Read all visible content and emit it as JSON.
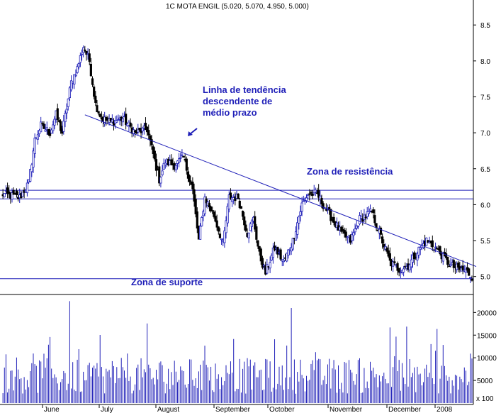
{
  "chart_data": {
    "type": "candlestick",
    "title": "1C MOTA ENGIL (5.020, 5.070, 4.950, 5.000)",
    "price_axis": {
      "min": 4.75,
      "max": 8.65,
      "ticks": [
        "8.5",
        "8.0",
        "7.5",
        "7.0",
        "6.5",
        "6.0",
        "5.5",
        "5.0"
      ]
    },
    "volume_axis": {
      "max": 23500,
      "ticks": [
        "20000",
        "15000",
        "10000",
        "5000"
      ],
      "multiplier_label": "x 100"
    },
    "months": [
      "June",
      "July",
      "August",
      "September",
      "October",
      "November",
      "December",
      "2008"
    ],
    "annotations": {
      "trendline_label": [
        "Linha de tendência",
        "descendente de",
        "médio prazo"
      ],
      "resistance_label": "Zona de resistência",
      "support_label": "Zona de suporte"
    },
    "resistance_zone": [
      6.08,
      6.2
    ],
    "support_level": 4.97,
    "trendline": {
      "from_index": 55,
      "from_price": 7.25,
      "to_index": 310,
      "to_price": 5.1
    },
    "sessions": 310,
    "anchors": [
      [
        0,
        6.15
      ],
      [
        12,
        6.1
      ],
      [
        18,
        6.3
      ],
      [
        22,
        6.9
      ],
      [
        26,
        7.1
      ],
      [
        32,
        7.0
      ],
      [
        36,
        7.25
      ],
      [
        40,
        7.0
      ],
      [
        46,
        7.7
      ],
      [
        50,
        7.9
      ],
      [
        54,
        8.2
      ],
      [
        58,
        8.0
      ],
      [
        62,
        7.4
      ],
      [
        66,
        7.2
      ],
      [
        72,
        7.15
      ],
      [
        80,
        7.2
      ],
      [
        88,
        7.0
      ],
      [
        96,
        7.05
      ],
      [
        100,
        6.7
      ],
      [
        104,
        6.35
      ],
      [
        108,
        6.6
      ],
      [
        114,
        6.55
      ],
      [
        120,
        6.65
      ],
      [
        126,
        6.2
      ],
      [
        130,
        5.5
      ],
      [
        134,
        6.1
      ],
      [
        140,
        5.85
      ],
      [
        146,
        5.45
      ],
      [
        150,
        6.1
      ],
      [
        156,
        6.1
      ],
      [
        162,
        5.6
      ],
      [
        166,
        5.8
      ],
      [
        170,
        5.3
      ],
      [
        174,
        5.05
      ],
      [
        180,
        5.4
      ],
      [
        186,
        5.2
      ],
      [
        192,
        5.5
      ],
      [
        198,
        6.0
      ],
      [
        202,
        6.15
      ],
      [
        208,
        6.15
      ],
      [
        212,
        6.0
      ],
      [
        218,
        5.8
      ],
      [
        224,
        5.6
      ],
      [
        230,
        5.5
      ],
      [
        236,
        5.8
      ],
      [
        244,
        5.9
      ],
      [
        250,
        5.55
      ],
      [
        256,
        5.2
      ],
      [
        262,
        5.1
      ],
      [
        268,
        5.15
      ],
      [
        274,
        5.35
      ],
      [
        280,
        5.5
      ],
      [
        286,
        5.4
      ],
      [
        290,
        5.3
      ],
      [
        296,
        5.15
      ],
      [
        302,
        5.1
      ],
      [
        306,
        5.08
      ],
      [
        310,
        5.0
      ]
    ]
  }
}
